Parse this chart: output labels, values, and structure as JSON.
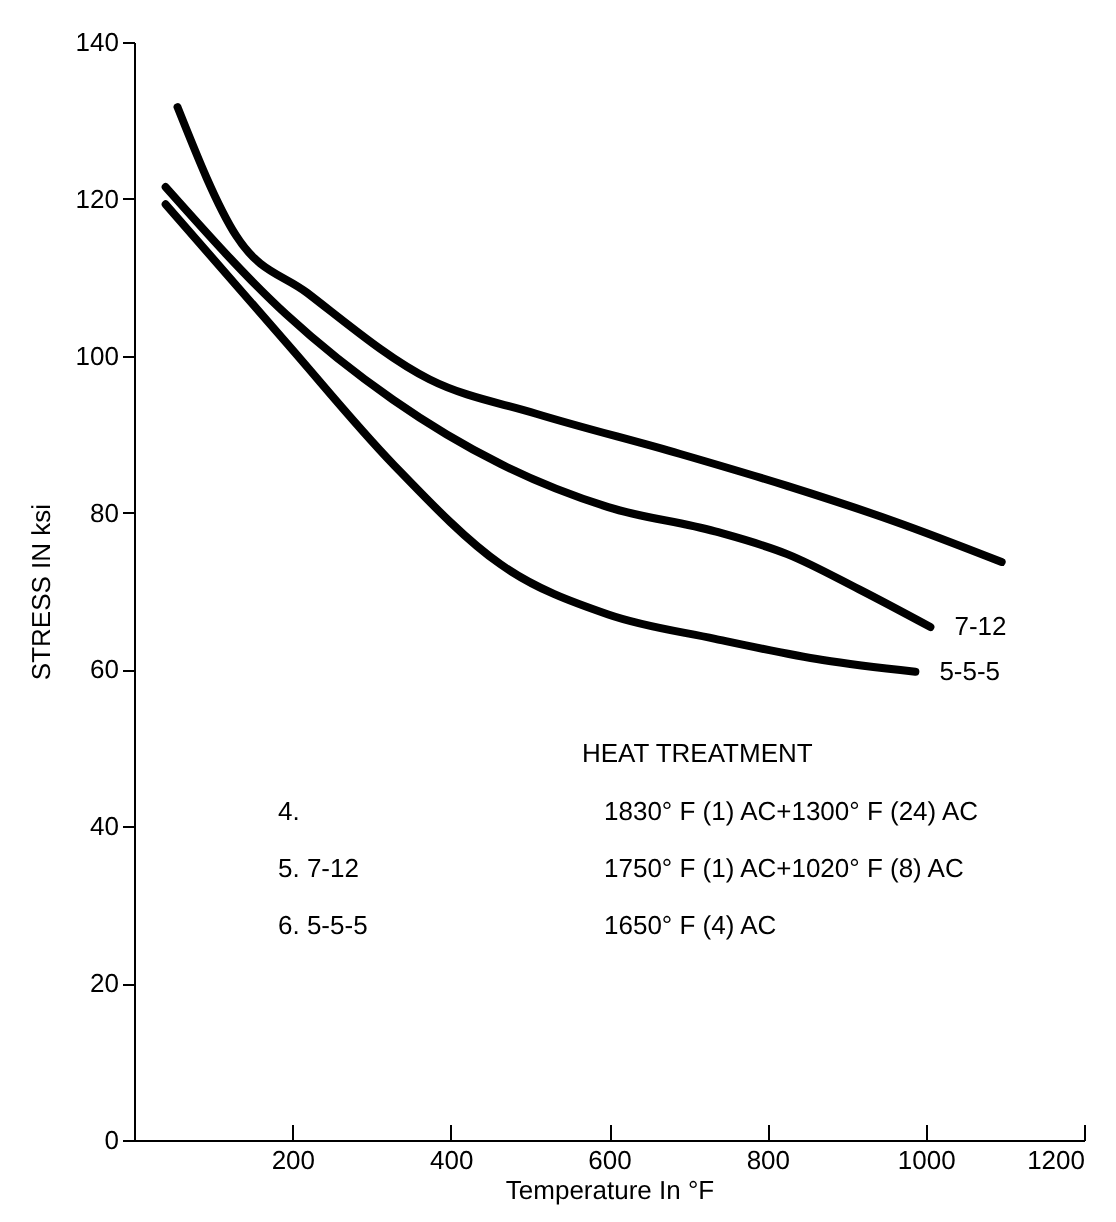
{
  "chart_data": {
    "type": "line",
    "xlabel": "Temperature In °F",
    "ylabel": "STRESS IN ksi",
    "xlim": [
      0,
      1200
    ],
    "xticks": [
      200,
      400,
      600,
      800,
      1000,
      1200
    ],
    "ylim": [
      0,
      140
    ],
    "yticks": [
      0,
      20,
      40,
      60,
      80,
      100,
      120,
      140
    ],
    "marker": "none",
    "line_style": "solid",
    "series": [
      {
        "color": "#000000",
        "x": [
          55,
          129,
          219,
          373,
          508,
          689,
          825,
          960,
          1096
        ],
        "values": [
          131.7,
          115.3,
          108,
          97,
          92.6,
          87.5,
          83.4,
          78.9,
          73.7
        ]
      },
      {
        "name": "7-12",
        "color": "#000000",
        "x": [
          40,
          192,
          327,
          463,
          599,
          734,
          825,
          916,
          1006
        ],
        "values": [
          121.5,
          105.3,
          94.4,
          86.2,
          80.7,
          77.6,
          74.7,
          70.2,
          65.4
        ]
      },
      {
        "name": "5-5-5",
        "color": "#000000",
        "x": [
          40,
          192,
          327,
          463,
          599,
          734,
          870,
          987
        ],
        "values": [
          119.3,
          101.7,
          86.2,
          73.4,
          67,
          63.9,
          61.2,
          59.7
        ]
      }
    ],
    "annotations": [
      "HEAT TREATMENT",
      "4.",
      "1830° F (1) AC+1300° F (24) AC",
      "5. 7-12",
      "1750° F (1) AC+1020° F (8) AC",
      "6. 5-5-5",
      "1650° F (4) AC"
    ]
  }
}
